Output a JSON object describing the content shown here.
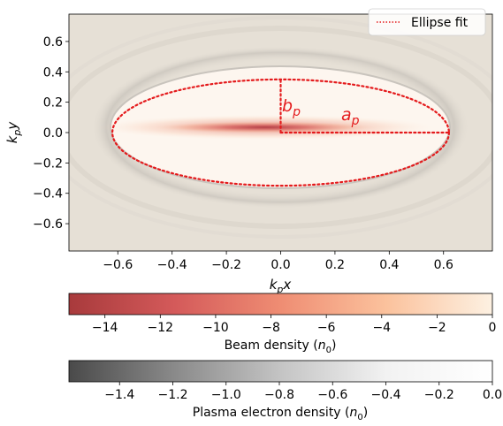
{
  "chart_data": {
    "type": "heatmap",
    "title": "",
    "xlabel": {
      "main": "k",
      "sub": "p",
      "tail": "x"
    },
    "ylabel": {
      "main": "k",
      "sub": "p",
      "tail": "y"
    },
    "xlim": [
      -0.78,
      0.78
    ],
    "ylim": [
      -0.78,
      0.78
    ],
    "xticks": [
      -0.6,
      -0.4,
      -0.2,
      0.0,
      0.2,
      0.4,
      0.6
    ],
    "xtick_labels": [
      "−0.6",
      "−0.4",
      "−0.2",
      "0.0",
      "0.2",
      "0.4",
      "0.6"
    ],
    "yticks": [
      0.6,
      0.4,
      0.2,
      0.0,
      -0.2,
      -0.4,
      -0.6
    ],
    "ytick_labels": [
      "0.6",
      "0.4",
      "0.2",
      "0.0",
      "−0.2",
      "−0.4",
      "−0.6"
    ],
    "legend": {
      "placement": "top-right",
      "entries": [
        {
          "label": "Ellipse fit",
          "color": "#e41a1c",
          "style": "dotted"
        }
      ]
    },
    "ellipse_fit": {
      "center": [
        0.0,
        0.0
      ],
      "a_p": 0.62,
      "b_p": 0.35,
      "color": "#e41a1c"
    },
    "annotations": [
      {
        "main": "b",
        "sub": "p"
      },
      {
        "main": "a",
        "sub": "p"
      }
    ],
    "colorbars": [
      {
        "name": "beam",
        "label_main": "Beam density (",
        "label_var": "n",
        "label_sub": "0",
        "label_close": ")",
        "range": [
          -15.3,
          0
        ],
        "ticks": [
          -14,
          -12,
          -10,
          -8,
          -6,
          -4,
          -2,
          0
        ],
        "tick_labels": [
          "−14",
          "−12",
          "−10",
          "−8",
          "−6",
          "−4",
          "−2",
          "0"
        ],
        "colors": [
          "#a83a3c",
          "#d45a5a",
          "#ef8d73",
          "#fbc29d",
          "#fdf1e2"
        ]
      },
      {
        "name": "plasma",
        "label_main": "Plasma electron density (",
        "label_var": "n",
        "label_sub": "0",
        "label_close": ")",
        "range": [
          -1.59,
          0
        ],
        "ticks": [
          -1.4,
          -1.2,
          -1.0,
          -0.8,
          -0.6,
          -0.4,
          -0.2,
          0.0
        ],
        "tick_labels": [
          "−1.4",
          "−1.2",
          "−1.0",
          "−0.8",
          "−0.6",
          "−0.4",
          "−0.2",
          "0.0"
        ],
        "colors": [
          "#4a4a4a",
          "#8a8a8a",
          "#c4c4c4",
          "#f2f2f2",
          "#ffffff"
        ]
      }
    ],
    "background_color": "#e6e0d6",
    "bubble_color": "#fdf6ef",
    "beam_color": "#c8434a"
  }
}
